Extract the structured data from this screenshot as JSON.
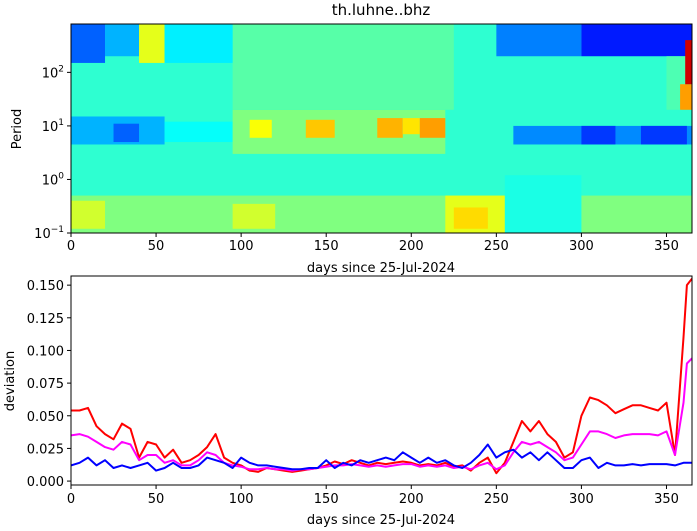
{
  "chart_data": [
    {
      "type": "heatmap",
      "title": "th.luhne..bhz",
      "xlabel": "days since 25-Jul-2024",
      "ylabel": "Period",
      "xlim": [
        0,
        365
      ],
      "ylim": [
        0.1,
        800
      ],
      "y_scale": "log",
      "xticks": [
        0,
        50,
        100,
        150,
        200,
        250,
        300,
        350
      ],
      "yticks": [
        {
          "value": 0.1,
          "base": "10",
          "exp": "−1"
        },
        {
          "value": 1,
          "base": "10",
          "exp": "0"
        },
        {
          "value": 10,
          "base": "10",
          "exp": "1"
        },
        {
          "value": 100,
          "base": "10",
          "exp": "2"
        }
      ],
      "colormap": "jet",
      "background_level": 0.42,
      "patches": [
        {
          "x": [
            0,
            365
          ],
          "p": [
            0.1,
            0.5
          ],
          "level": 0.5
        },
        {
          "x": [
            0,
            20
          ],
          "p": [
            0.12,
            0.4
          ],
          "level": 0.58
        },
        {
          "x": [
            95,
            120
          ],
          "p": [
            0.12,
            0.35
          ],
          "level": 0.58
        },
        {
          "x": [
            0,
            55
          ],
          "p": [
            4.5,
            15
          ],
          "level": 0.3
        },
        {
          "x": [
            25,
            40
          ],
          "p": [
            5,
            11
          ],
          "level": 0.22
        },
        {
          "x": [
            55,
            95
          ],
          "p": [
            5,
            12
          ],
          "level": 0.38
        },
        {
          "x": [
            95,
            220
          ],
          "p": [
            3,
            20
          ],
          "level": 0.5
        },
        {
          "x": [
            105,
            118
          ],
          "p": [
            6,
            13
          ],
          "level": 0.62
        },
        {
          "x": [
            138,
            155
          ],
          "p": [
            6,
            13
          ],
          "level": 0.68
        },
        {
          "x": [
            180,
            195
          ],
          "p": [
            6,
            14
          ],
          "level": 0.7
        },
        {
          "x": [
            195,
            205
          ],
          "p": [
            7,
            14
          ],
          "level": 0.65
        },
        {
          "x": [
            205,
            220
          ],
          "p": [
            6,
            14
          ],
          "level": 0.72
        },
        {
          "x": [
            95,
            225
          ],
          "p": [
            20,
            800
          ],
          "level": 0.46
        },
        {
          "x": [
            0,
            20
          ],
          "p": [
            150,
            800
          ],
          "level": 0.22
        },
        {
          "x": [
            20,
            40
          ],
          "p": [
            200,
            800
          ],
          "level": 0.3
        },
        {
          "x": [
            40,
            55
          ],
          "p": [
            150,
            800
          ],
          "level": 0.6
        },
        {
          "x": [
            55,
            95
          ],
          "p": [
            150,
            800
          ],
          "level": 0.36
        },
        {
          "x": [
            220,
            255
          ],
          "p": [
            0.1,
            0.5
          ],
          "level": 0.6
        },
        {
          "x": [
            225,
            245
          ],
          "p": [
            0.12,
            0.3
          ],
          "level": 0.66
        },
        {
          "x": [
            255,
            300
          ],
          "p": [
            0.1,
            1.2
          ],
          "level": 0.4
        },
        {
          "x": [
            260,
            365
          ],
          "p": [
            4.5,
            10
          ],
          "level": 0.26
        },
        {
          "x": [
            300,
            320
          ],
          "p": [
            4.5,
            10
          ],
          "level": 0.18
        },
        {
          "x": [
            335,
            362
          ],
          "p": [
            4.5,
            10
          ],
          "level": 0.18
        },
        {
          "x": [
            250,
            300
          ],
          "p": [
            200,
            800
          ],
          "level": 0.25
        },
        {
          "x": [
            300,
            365
          ],
          "p": [
            200,
            800
          ],
          "level": 0.15
        },
        {
          "x": [
            350,
            365
          ],
          "p": [
            20,
            200
          ],
          "level": 0.45
        },
        {
          "x": [
            358,
            365
          ],
          "p": [
            20,
            60
          ],
          "level": 0.72
        },
        {
          "x": [
            361,
            365
          ],
          "p": [
            60,
            400
          ],
          "level": 0.92
        }
      ]
    },
    {
      "type": "line",
      "xlabel": "days since 25-Jul-2024",
      "ylabel": "deviation",
      "xlim": [
        0,
        365
      ],
      "ylim": [
        -0.003,
        0.157
      ],
      "xticks": [
        0,
        50,
        100,
        150,
        200,
        250,
        300,
        350
      ],
      "yticks": [
        {
          "value": 0.0,
          "label": "0.000"
        },
        {
          "value": 0.025,
          "label": "0.025"
        },
        {
          "value": 0.05,
          "label": "0.050"
        },
        {
          "value": 0.075,
          "label": "0.075"
        },
        {
          "value": 0.1,
          "label": "0.100"
        },
        {
          "value": 0.125,
          "label": "0.125"
        },
        {
          "value": 0.15,
          "label": "0.150"
        }
      ],
      "x": [
        0,
        5,
        10,
        15,
        20,
        25,
        30,
        35,
        40,
        45,
        50,
        55,
        60,
        65,
        70,
        75,
        80,
        85,
        90,
        95,
        100,
        105,
        110,
        115,
        120,
        125,
        130,
        135,
        140,
        145,
        150,
        155,
        160,
        165,
        170,
        175,
        180,
        185,
        190,
        195,
        200,
        205,
        210,
        215,
        220,
        225,
        230,
        235,
        240,
        245,
        250,
        255,
        260,
        265,
        270,
        275,
        280,
        285,
        290,
        295,
        300,
        305,
        310,
        315,
        320,
        325,
        330,
        335,
        340,
        345,
        350,
        355,
        360,
        362,
        365
      ],
      "series": [
        {
          "color": "#ff0000",
          "values": [
            0.054,
            0.054,
            0.056,
            0.042,
            0.036,
            0.032,
            0.044,
            0.04,
            0.018,
            0.03,
            0.028,
            0.018,
            0.024,
            0.014,
            0.016,
            0.02,
            0.026,
            0.036,
            0.018,
            0.014,
            0.012,
            0.008,
            0.007,
            0.01,
            0.009,
            0.008,
            0.007,
            0.008,
            0.009,
            0.01,
            0.012,
            0.015,
            0.013,
            0.016,
            0.014,
            0.012,
            0.014,
            0.013,
            0.014,
            0.015,
            0.014,
            0.012,
            0.013,
            0.012,
            0.014,
            0.011,
            0.012,
            0.008,
            0.014,
            0.018,
            0.006,
            0.014,
            0.03,
            0.046,
            0.038,
            0.046,
            0.036,
            0.03,
            0.018,
            0.022,
            0.05,
            0.064,
            0.062,
            0.058,
            0.052,
            0.055,
            0.058,
            0.058,
            0.056,
            0.054,
            0.06,
            0.02,
            0.11,
            0.15,
            0.155
          ]
        },
        {
          "color": "#ff00ff",
          "values": [
            0.035,
            0.036,
            0.034,
            0.03,
            0.026,
            0.024,
            0.03,
            0.028,
            0.016,
            0.02,
            0.02,
            0.014,
            0.016,
            0.012,
            0.012,
            0.016,
            0.022,
            0.02,
            0.014,
            0.012,
            0.011,
            0.009,
            0.009,
            0.01,
            0.009,
            0.009,
            0.008,
            0.009,
            0.009,
            0.01,
            0.011,
            0.012,
            0.012,
            0.013,
            0.012,
            0.011,
            0.012,
            0.011,
            0.012,
            0.013,
            0.013,
            0.011,
            0.012,
            0.011,
            0.012,
            0.01,
            0.011,
            0.009,
            0.012,
            0.014,
            0.009,
            0.012,
            0.022,
            0.03,
            0.028,
            0.03,
            0.026,
            0.022,
            0.016,
            0.018,
            0.028,
            0.038,
            0.038,
            0.036,
            0.033,
            0.035,
            0.036,
            0.036,
            0.036,
            0.035,
            0.038,
            0.02,
            0.06,
            0.09,
            0.094
          ]
        },
        {
          "color": "#0000ff",
          "values": [
            0.012,
            0.014,
            0.018,
            0.012,
            0.016,
            0.01,
            0.012,
            0.01,
            0.012,
            0.014,
            0.008,
            0.01,
            0.014,
            0.01,
            0.01,
            0.012,
            0.018,
            0.016,
            0.014,
            0.01,
            0.018,
            0.014,
            0.012,
            0.012,
            0.011,
            0.01,
            0.009,
            0.009,
            0.01,
            0.01,
            0.016,
            0.01,
            0.014,
            0.012,
            0.016,
            0.014,
            0.016,
            0.018,
            0.016,
            0.022,
            0.018,
            0.014,
            0.018,
            0.014,
            0.016,
            0.012,
            0.01,
            0.014,
            0.02,
            0.028,
            0.018,
            0.022,
            0.024,
            0.018,
            0.022,
            0.016,
            0.022,
            0.016,
            0.01,
            0.01,
            0.016,
            0.018,
            0.01,
            0.014,
            0.012,
            0.012,
            0.013,
            0.012,
            0.013,
            0.013,
            0.013,
            0.012,
            0.014,
            0.014,
            0.014
          ]
        }
      ]
    }
  ]
}
